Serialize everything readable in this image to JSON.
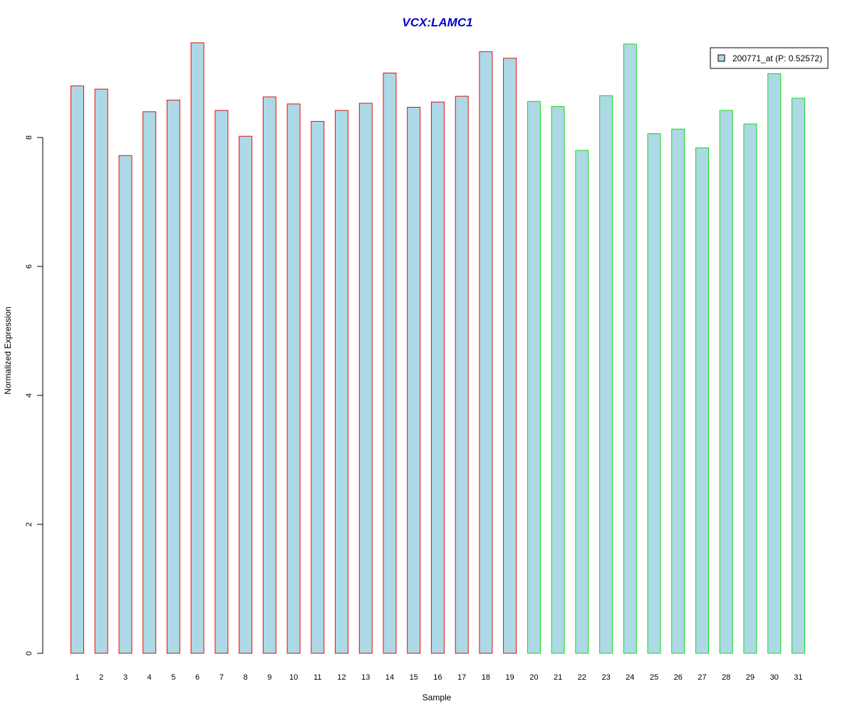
{
  "chart_data": {
    "type": "bar",
    "title": "VCX:LAMC1",
    "xlabel": "Sample",
    "ylabel": "Normalized Expression",
    "categories": [
      "1",
      "2",
      "3",
      "4",
      "5",
      "6",
      "7",
      "8",
      "9",
      "10",
      "11",
      "12",
      "13",
      "14",
      "15",
      "16",
      "17",
      "18",
      "19",
      "20",
      "21",
      "22",
      "23",
      "24",
      "25",
      "26",
      "27",
      "28",
      "29",
      "30",
      "31"
    ],
    "series": [
      {
        "name": "200771_at (P: 0.52572)",
        "values": [
          8.8,
          8.75,
          7.72,
          8.4,
          8.58,
          9.47,
          8.42,
          8.02,
          8.63,
          8.52,
          8.25,
          8.42,
          8.53,
          9.0,
          8.47,
          8.55,
          8.64,
          9.33,
          9.23,
          8.56,
          8.48,
          7.8,
          8.65,
          9.45,
          8.06,
          8.13,
          7.84,
          8.42,
          8.21,
          8.99,
          8.61
        ]
      }
    ],
    "groups": [
      {
        "samples": "1-19",
        "border_color": "#dd1111"
      },
      {
        "samples": "20-31",
        "border_color": "#11dd11"
      }
    ],
    "bar_fill": "#add8e6",
    "title_color": "#0000cc",
    "ylim": [
      0,
      9.5
    ],
    "yticks": [
      "0",
      "2",
      "4",
      "6",
      "8"
    ],
    "grid": false,
    "legend_position": "top-right"
  }
}
